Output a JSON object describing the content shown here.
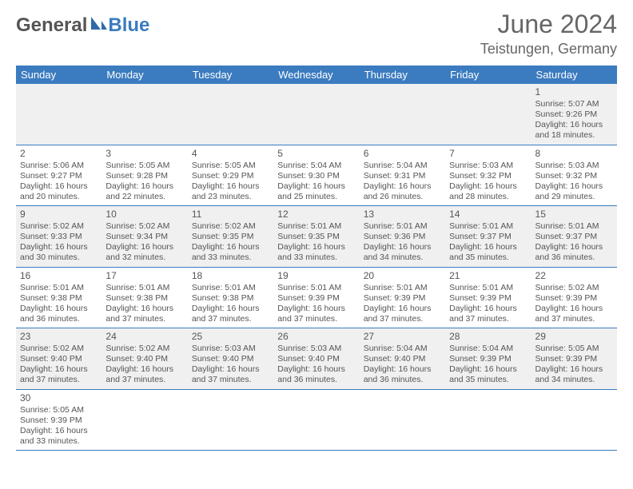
{
  "brand": {
    "name1": "General",
    "name2": "Blue"
  },
  "title": "June 2024",
  "location": "Teistungen, Germany",
  "colors": {
    "header_bg": "#3b7bbf",
    "header_fg": "#ffffff",
    "row_alt_bg": "#f0f0f0",
    "text": "#555555",
    "border": "#3b7bbf"
  },
  "font": {
    "family": "Arial",
    "header_size_pt": 24,
    "cell_size_pt": 8
  },
  "weekdays": [
    "Sunday",
    "Monday",
    "Tuesday",
    "Wednesday",
    "Thursday",
    "Friday",
    "Saturday"
  ],
  "weeks": [
    [
      null,
      null,
      null,
      null,
      null,
      null,
      {
        "d": "1",
        "sunrise": "Sunrise: 5:07 AM",
        "sunset": "Sunset: 9:26 PM",
        "day1": "Daylight: 16 hours",
        "day2": "and 18 minutes."
      }
    ],
    [
      {
        "d": "2",
        "sunrise": "Sunrise: 5:06 AM",
        "sunset": "Sunset: 9:27 PM",
        "day1": "Daylight: 16 hours",
        "day2": "and 20 minutes."
      },
      {
        "d": "3",
        "sunrise": "Sunrise: 5:05 AM",
        "sunset": "Sunset: 9:28 PM",
        "day1": "Daylight: 16 hours",
        "day2": "and 22 minutes."
      },
      {
        "d": "4",
        "sunrise": "Sunrise: 5:05 AM",
        "sunset": "Sunset: 9:29 PM",
        "day1": "Daylight: 16 hours",
        "day2": "and 23 minutes."
      },
      {
        "d": "5",
        "sunrise": "Sunrise: 5:04 AM",
        "sunset": "Sunset: 9:30 PM",
        "day1": "Daylight: 16 hours",
        "day2": "and 25 minutes."
      },
      {
        "d": "6",
        "sunrise": "Sunrise: 5:04 AM",
        "sunset": "Sunset: 9:31 PM",
        "day1": "Daylight: 16 hours",
        "day2": "and 26 minutes."
      },
      {
        "d": "7",
        "sunrise": "Sunrise: 5:03 AM",
        "sunset": "Sunset: 9:32 PM",
        "day1": "Daylight: 16 hours",
        "day2": "and 28 minutes."
      },
      {
        "d": "8",
        "sunrise": "Sunrise: 5:03 AM",
        "sunset": "Sunset: 9:32 PM",
        "day1": "Daylight: 16 hours",
        "day2": "and 29 minutes."
      }
    ],
    [
      {
        "d": "9",
        "sunrise": "Sunrise: 5:02 AM",
        "sunset": "Sunset: 9:33 PM",
        "day1": "Daylight: 16 hours",
        "day2": "and 30 minutes."
      },
      {
        "d": "10",
        "sunrise": "Sunrise: 5:02 AM",
        "sunset": "Sunset: 9:34 PM",
        "day1": "Daylight: 16 hours",
        "day2": "and 32 minutes."
      },
      {
        "d": "11",
        "sunrise": "Sunrise: 5:02 AM",
        "sunset": "Sunset: 9:35 PM",
        "day1": "Daylight: 16 hours",
        "day2": "and 33 minutes."
      },
      {
        "d": "12",
        "sunrise": "Sunrise: 5:01 AM",
        "sunset": "Sunset: 9:35 PM",
        "day1": "Daylight: 16 hours",
        "day2": "and 33 minutes."
      },
      {
        "d": "13",
        "sunrise": "Sunrise: 5:01 AM",
        "sunset": "Sunset: 9:36 PM",
        "day1": "Daylight: 16 hours",
        "day2": "and 34 minutes."
      },
      {
        "d": "14",
        "sunrise": "Sunrise: 5:01 AM",
        "sunset": "Sunset: 9:37 PM",
        "day1": "Daylight: 16 hours",
        "day2": "and 35 minutes."
      },
      {
        "d": "15",
        "sunrise": "Sunrise: 5:01 AM",
        "sunset": "Sunset: 9:37 PM",
        "day1": "Daylight: 16 hours",
        "day2": "and 36 minutes."
      }
    ],
    [
      {
        "d": "16",
        "sunrise": "Sunrise: 5:01 AM",
        "sunset": "Sunset: 9:38 PM",
        "day1": "Daylight: 16 hours",
        "day2": "and 36 minutes."
      },
      {
        "d": "17",
        "sunrise": "Sunrise: 5:01 AM",
        "sunset": "Sunset: 9:38 PM",
        "day1": "Daylight: 16 hours",
        "day2": "and 37 minutes."
      },
      {
        "d": "18",
        "sunrise": "Sunrise: 5:01 AM",
        "sunset": "Sunset: 9:38 PM",
        "day1": "Daylight: 16 hours",
        "day2": "and 37 minutes."
      },
      {
        "d": "19",
        "sunrise": "Sunrise: 5:01 AM",
        "sunset": "Sunset: 9:39 PM",
        "day1": "Daylight: 16 hours",
        "day2": "and 37 minutes."
      },
      {
        "d": "20",
        "sunrise": "Sunrise: 5:01 AM",
        "sunset": "Sunset: 9:39 PM",
        "day1": "Daylight: 16 hours",
        "day2": "and 37 minutes."
      },
      {
        "d": "21",
        "sunrise": "Sunrise: 5:01 AM",
        "sunset": "Sunset: 9:39 PM",
        "day1": "Daylight: 16 hours",
        "day2": "and 37 minutes."
      },
      {
        "d": "22",
        "sunrise": "Sunrise: 5:02 AM",
        "sunset": "Sunset: 9:39 PM",
        "day1": "Daylight: 16 hours",
        "day2": "and 37 minutes."
      }
    ],
    [
      {
        "d": "23",
        "sunrise": "Sunrise: 5:02 AM",
        "sunset": "Sunset: 9:40 PM",
        "day1": "Daylight: 16 hours",
        "day2": "and 37 minutes."
      },
      {
        "d": "24",
        "sunrise": "Sunrise: 5:02 AM",
        "sunset": "Sunset: 9:40 PM",
        "day1": "Daylight: 16 hours",
        "day2": "and 37 minutes."
      },
      {
        "d": "25",
        "sunrise": "Sunrise: 5:03 AM",
        "sunset": "Sunset: 9:40 PM",
        "day1": "Daylight: 16 hours",
        "day2": "and 37 minutes."
      },
      {
        "d": "26",
        "sunrise": "Sunrise: 5:03 AM",
        "sunset": "Sunset: 9:40 PM",
        "day1": "Daylight: 16 hours",
        "day2": "and 36 minutes."
      },
      {
        "d": "27",
        "sunrise": "Sunrise: 5:04 AM",
        "sunset": "Sunset: 9:40 PM",
        "day1": "Daylight: 16 hours",
        "day2": "and 36 minutes."
      },
      {
        "d": "28",
        "sunrise": "Sunrise: 5:04 AM",
        "sunset": "Sunset: 9:39 PM",
        "day1": "Daylight: 16 hours",
        "day2": "and 35 minutes."
      },
      {
        "d": "29",
        "sunrise": "Sunrise: 5:05 AM",
        "sunset": "Sunset: 9:39 PM",
        "day1": "Daylight: 16 hours",
        "day2": "and 34 minutes."
      }
    ],
    [
      {
        "d": "30",
        "sunrise": "Sunrise: 5:05 AM",
        "sunset": "Sunset: 9:39 PM",
        "day1": "Daylight: 16 hours",
        "day2": "and 33 minutes."
      },
      null,
      null,
      null,
      null,
      null,
      null
    ]
  ]
}
